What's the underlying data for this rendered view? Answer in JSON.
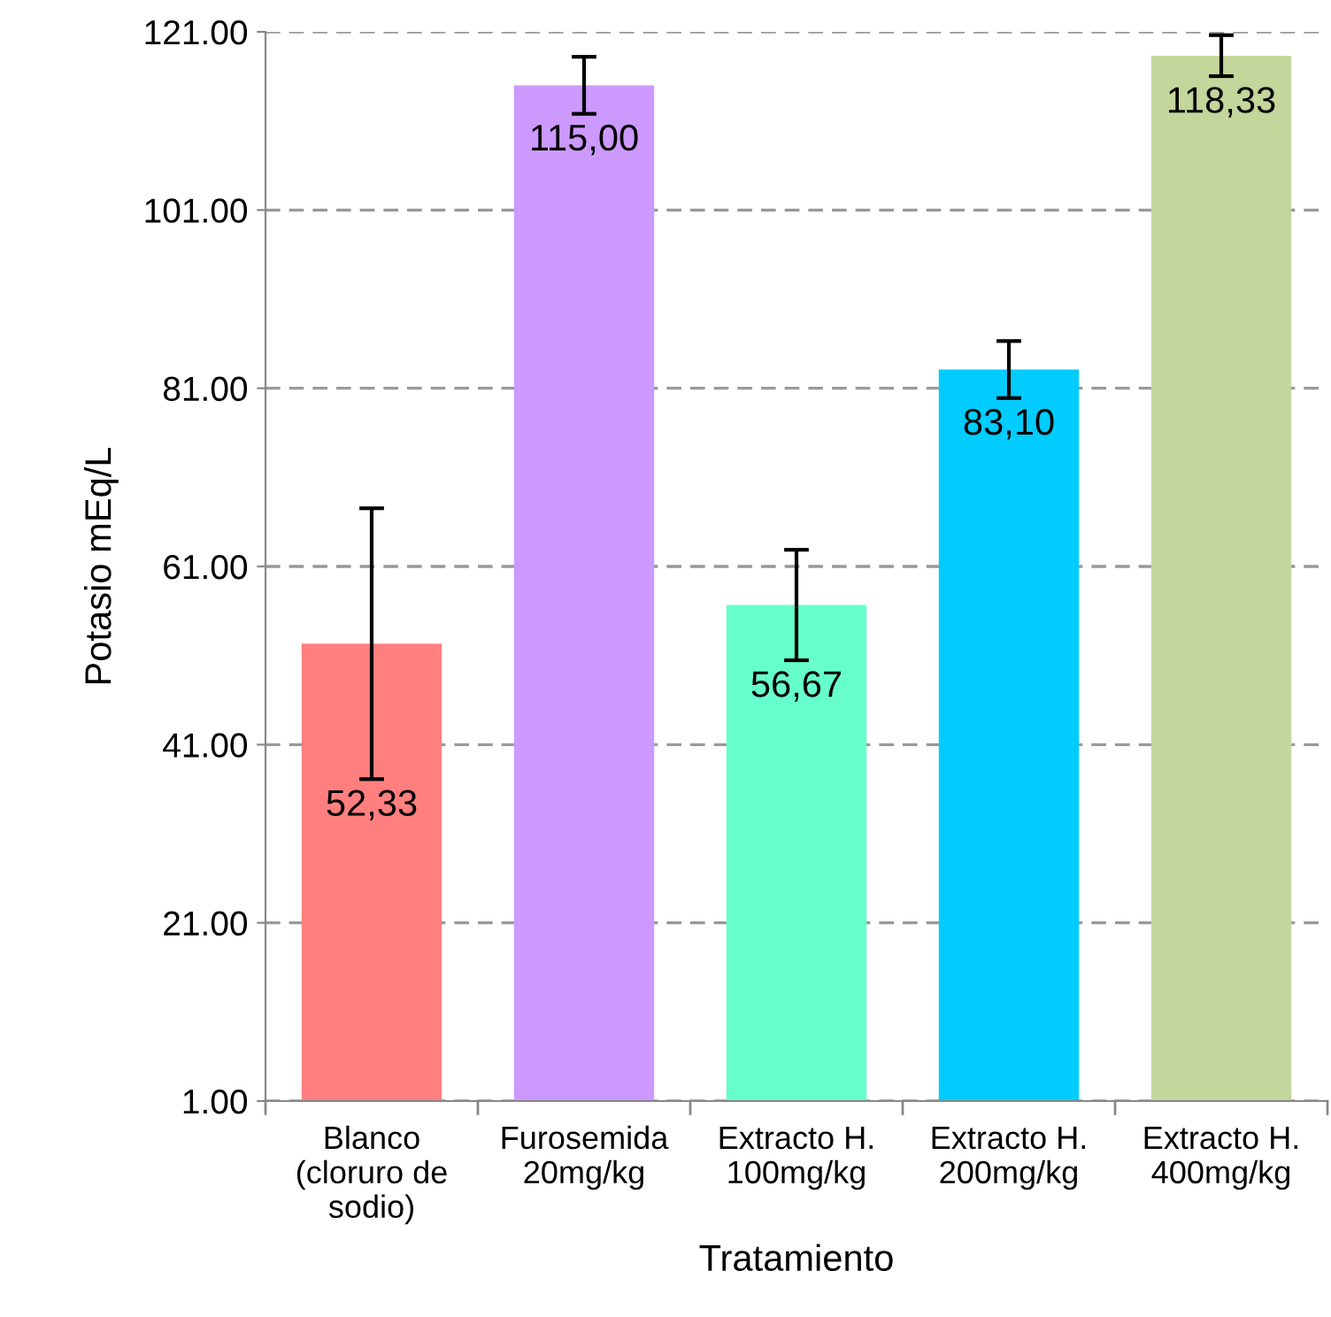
{
  "chart_data": {
    "type": "bar",
    "xlabel": "Tratamiento",
    "ylabel": "Potasio mEq/L",
    "categories": [
      "Blanco\n(cloruro de\nsodio)",
      "Furosemida\n20mg/kg",
      "Extracto H.\n100mg/kg",
      "Extracto H.\n200mg/kg",
      "Extracto H.\n400mg/kg"
    ],
    "values": [
      52.33,
      115.0,
      56.67,
      83.1,
      118.33
    ],
    "value_labels": [
      "52,33",
      "115,00",
      "56,67",
      "83,10",
      "118,33"
    ],
    "errors": [
      15.2,
      3.2,
      6.2,
      3.2,
      2.3
    ],
    "colors": [
      "#ff7f7f",
      "#cc99ff",
      "#66ffcc",
      "#00ccff",
      "#c3d69b"
    ],
    "ylim": [
      1,
      121
    ],
    "yticks": [
      {
        "value": 1,
        "label": "1.00"
      },
      {
        "value": 21,
        "label": "21.00"
      },
      {
        "value": 41,
        "label": "41.00"
      },
      {
        "value": 61,
        "label": "61.00"
      },
      {
        "value": 81,
        "label": "81.00"
      },
      {
        "value": 101,
        "label": "101.00"
      },
      {
        "value": 121,
        "label": "121.00"
      }
    ],
    "grid": "y"
  }
}
